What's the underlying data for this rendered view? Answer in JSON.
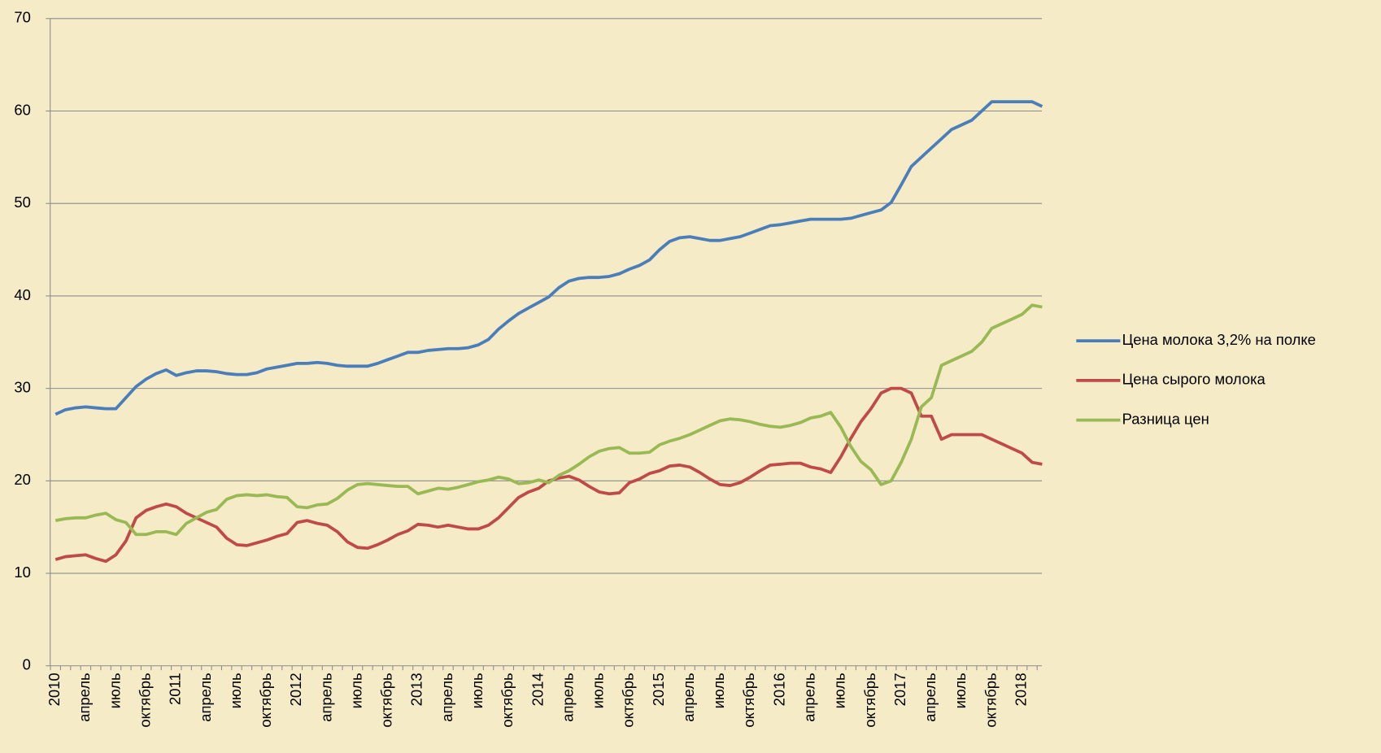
{
  "chart_data": {
    "type": "line",
    "categories": [
      "2010",
      null,
      null,
      "апрель",
      null,
      null,
      "июль",
      null,
      null,
      "октябрь",
      null,
      null,
      "2011",
      null,
      null,
      "апрель",
      null,
      null,
      "июль",
      null,
      null,
      "октябрь",
      null,
      null,
      "2012",
      null,
      null,
      "апрель",
      null,
      null,
      "июль",
      null,
      null,
      "октябрь",
      null,
      null,
      "2013",
      null,
      null,
      "апрель",
      null,
      null,
      "июль",
      null,
      null,
      "октябрь",
      null,
      null,
      "2014",
      null,
      null,
      "апрель",
      null,
      null,
      "июль",
      null,
      null,
      "октябрь",
      null,
      null,
      "2015",
      null,
      null,
      "апрель",
      null,
      null,
      "июль",
      null,
      null,
      "октябрь",
      null,
      null,
      "2016",
      null,
      null,
      "апрель",
      null,
      null,
      "июль",
      null,
      null,
      "октябрь",
      null,
      null,
      "2017",
      null,
      null,
      "апрель",
      null,
      null,
      "июль",
      null,
      null,
      "октябрь",
      null,
      null,
      "2018",
      null,
      null
    ],
    "series": [
      {
        "name": "Цена молока 3,2% на полке",
        "color": "#4a7ebb",
        "values": [
          27.2,
          27.7,
          27.9,
          28,
          27.9,
          27.8,
          27.8,
          29,
          30.2,
          31,
          31.6,
          32,
          31.4,
          31.7,
          31.9,
          31.9,
          31.8,
          31.6,
          31.5,
          31.5,
          31.7,
          32.1,
          32.3,
          32.5,
          32.7,
          32.7,
          32.8,
          32.7,
          32.5,
          32.4,
          32.4,
          32.4,
          32.7,
          33.1,
          33.5,
          33.9,
          33.9,
          34.1,
          34.2,
          34.3,
          34.3,
          34.4,
          34.7,
          35.3,
          36.4,
          37.3,
          38.1,
          38.7,
          39.3,
          39.9,
          40.9,
          41.6,
          41.9,
          42,
          42,
          42.1,
          42.4,
          42.9,
          43.3,
          43.9,
          45,
          45.9,
          46.3,
          46.4,
          46.2,
          46,
          46,
          46.2,
          46.4,
          46.8,
          47.2,
          47.6,
          47.7,
          47.9,
          48.1,
          48.3,
          48.3,
          48.3,
          48.3,
          48.4,
          48.7,
          49,
          49.3,
          50.1,
          52,
          54,
          55,
          56,
          57,
          58,
          58.5,
          59,
          60,
          61,
          61,
          61,
          61,
          61,
          60.5
        ]
      },
      {
        "name": "Цена сырого молока",
        "color": "#be4b48",
        "values": [
          11.5,
          11.8,
          11.9,
          12,
          11.6,
          11.3,
          12,
          13.5,
          16,
          16.8,
          17.2,
          17.5,
          17.2,
          16.5,
          16,
          15.5,
          15,
          13.8,
          13.1,
          13,
          13.3,
          13.6,
          14,
          14.3,
          15.5,
          15.7,
          15.4,
          15.2,
          14.5,
          13.4,
          12.8,
          12.7,
          13.1,
          13.6,
          14.2,
          14.6,
          15.3,
          15.2,
          15,
          15.2,
          15,
          14.8,
          14.8,
          15.2,
          16,
          17.1,
          18.2,
          18.8,
          19.2,
          20,
          20.3,
          20.5,
          20.1,
          19.4,
          18.8,
          18.6,
          18.7,
          19.8,
          20.2,
          20.8,
          21.1,
          21.6,
          21.7,
          21.5,
          20.9,
          20.2,
          19.6,
          19.5,
          19.8,
          20.4,
          21.1,
          21.7,
          21.8,
          21.9,
          21.9,
          21.5,
          21.3,
          20.9,
          22.6,
          24.6,
          26.4,
          27.8,
          29.5,
          30,
          30,
          29.5,
          27,
          27,
          24.5,
          25,
          25,
          25,
          25,
          24.5,
          24,
          23.5,
          23,
          22,
          21.8
        ]
      },
      {
        "name": "Разница цен",
        "color": "#98b954",
        "values": [
          15.7,
          15.9,
          16,
          16,
          16.3,
          16.5,
          15.8,
          15.5,
          14.2,
          14.2,
          14.5,
          14.5,
          14.2,
          15.4,
          16,
          16.6,
          16.9,
          18,
          18.4,
          18.5,
          18.4,
          18.5,
          18.3,
          18.2,
          17.2,
          17.1,
          17.4,
          17.5,
          18.1,
          19,
          19.6,
          19.7,
          19.6,
          19.5,
          19.4,
          19.4,
          18.6,
          18.9,
          19.2,
          19.1,
          19.3,
          19.6,
          19.9,
          20.1,
          20.4,
          20.2,
          19.7,
          19.8,
          20.1,
          19.8,
          20.6,
          21.1,
          21.8,
          22.6,
          23.2,
          23.5,
          23.6,
          23,
          23,
          23.1,
          23.9,
          24.3,
          24.6,
          25,
          25.5,
          26,
          26.5,
          26.7,
          26.6,
          26.4,
          26.1,
          25.9,
          25.8,
          26,
          26.3,
          26.8,
          27,
          27.4,
          25.8,
          23.7,
          22.1,
          21.2,
          19.6,
          20,
          22,
          24.5,
          28,
          29,
          32.5,
          33,
          33.5,
          34,
          35,
          36.5,
          37,
          37.5,
          38,
          39,
          38.8
        ]
      }
    ],
    "ylim": [
      0,
      70
    ],
    "yticks": [
      0,
      10,
      20,
      30,
      40,
      50,
      60,
      70
    ],
    "grid": true,
    "legend": "right"
  }
}
